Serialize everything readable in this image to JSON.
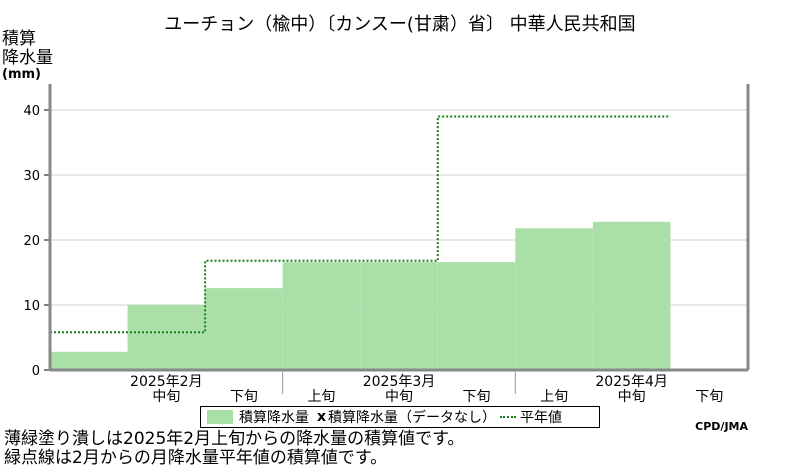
{
  "chart_data": {
    "type": "area",
    "title": "ユーチョン（楡中）〔カンスー(甘粛）省〕 中華人民共和国",
    "ylabel_line1": "積算",
    "ylabel_line2": "降水量",
    "ylabel_unit": "(mm)",
    "ylim": [
      0,
      44
    ],
    "yticks": [
      0,
      10,
      20,
      30,
      40
    ],
    "periods": [
      "上旬",
      "中旬",
      "下旬",
      "上旬",
      "中旬",
      "下旬",
      "上旬",
      "中旬",
      "下旬"
    ],
    "months": [
      {
        "label": "2025年2月",
        "start": 0
      },
      {
        "label": "2025年3月",
        "start": 3
      },
      {
        "label": "2025年4月",
        "start": 6
      }
    ],
    "x_labels": [
      "",
      "中旬",
      "下旬",
      "上旬",
      "中旬",
      "下旬",
      "上旬",
      "中旬",
      "下旬"
    ],
    "series": [
      {
        "name": "積算降水量",
        "type": "step-fill",
        "color": "#aae0a8",
        "values": [
          2.8,
          10.0,
          12.6,
          16.6,
          16.6,
          16.6,
          21.8,
          22.8
        ]
      },
      {
        "name": "積算降水量（データなし）",
        "type": "marker",
        "marker": "x"
      },
      {
        "name": "平年値",
        "type": "step-dotted",
        "color": "#1a7a1a",
        "values": [
          5.8,
          5.8,
          16.8,
          16.8,
          16.8,
          39.0,
          39.0,
          39.0
        ]
      }
    ],
    "grid": true
  },
  "legend": {
    "item1": "積算降水量",
    "item2_marker": "x",
    "item2": "積算降水量（データなし）",
    "item3": "平年値"
  },
  "credit": "CPD/JMA",
  "notes": {
    "line1": "薄緑塗り潰しは2025年2月上旬からの降水量の積算値です。",
    "line2": "緑点線は2月からの月降水量平年値の積算値です。"
  }
}
